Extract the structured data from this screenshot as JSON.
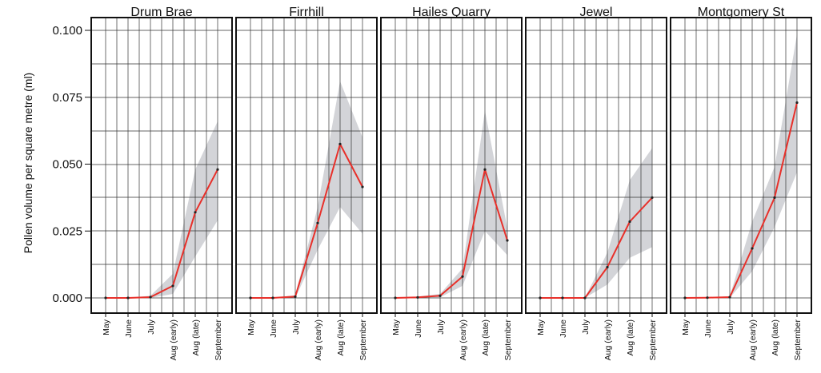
{
  "chart_data": {
    "type": "line",
    "ylabel": "Pollen volume per square metre (ml)",
    "ylim": [
      0,
      0.1
    ],
    "yticks": [
      "0.000",
      "0.025",
      "0.050",
      "0.075",
      "0.100"
    ],
    "ytick_values": [
      0,
      0.025,
      0.05,
      0.075,
      0.1
    ],
    "categories": [
      "May",
      "June",
      "July",
      "Aug (early)",
      "Aug (late)",
      "September"
    ],
    "grid": true,
    "colors": {
      "line": "#e8302a",
      "band": "#d3d4d8",
      "point": "#222222",
      "grid": "#333333",
      "frame": "#111111"
    },
    "panels": [
      {
        "title": "Drum Brae",
        "values": [
          0.0,
          0.0,
          0.0003,
          0.0045,
          0.032,
          0.048
        ],
        "lower": [
          0.0,
          0.0,
          0.0,
          0.0015,
          0.0155,
          0.029
        ],
        "upper": [
          0.0,
          0.0,
          0.0008,
          0.009,
          0.048,
          0.066
        ]
      },
      {
        "title": "Firrhill",
        "values": [
          0.0,
          0.0,
          0.0005,
          0.028,
          0.0575,
          0.0415
        ],
        "lower": [
          0.0,
          0.0,
          0.0,
          0.018,
          0.034,
          0.024
        ],
        "upper": [
          0.0,
          0.0,
          0.001,
          0.034,
          0.081,
          0.06
        ]
      },
      {
        "title": "Hailes Quarry",
        "values": [
          0.0,
          0.0002,
          0.0008,
          0.008,
          0.048,
          0.0215
        ],
        "lower": [
          0.0,
          0.0,
          0.0002,
          0.0045,
          0.025,
          0.016
        ],
        "upper": [
          0.0,
          0.0005,
          0.0015,
          0.011,
          0.07,
          0.026
        ]
      },
      {
        "title": "Jewel",
        "values": [
          0.0,
          0.0,
          0.0,
          0.0115,
          0.0285,
          0.0375
        ],
        "lower": [
          0.0,
          0.0,
          0.0,
          0.005,
          0.015,
          0.019
        ],
        "upper": [
          0.0,
          0.0,
          0.0,
          0.017,
          0.044,
          0.056
        ]
      },
      {
        "title": "Montgomery St",
        "values": [
          0.0,
          0.0001,
          0.0003,
          0.0185,
          0.0375,
          0.073
        ],
        "lower": [
          0.0,
          0.0,
          0.0,
          0.01,
          0.0265,
          0.047
        ],
        "upper": [
          0.0,
          0.0002,
          0.0006,
          0.0285,
          0.049,
          0.0985
        ]
      }
    ]
  }
}
